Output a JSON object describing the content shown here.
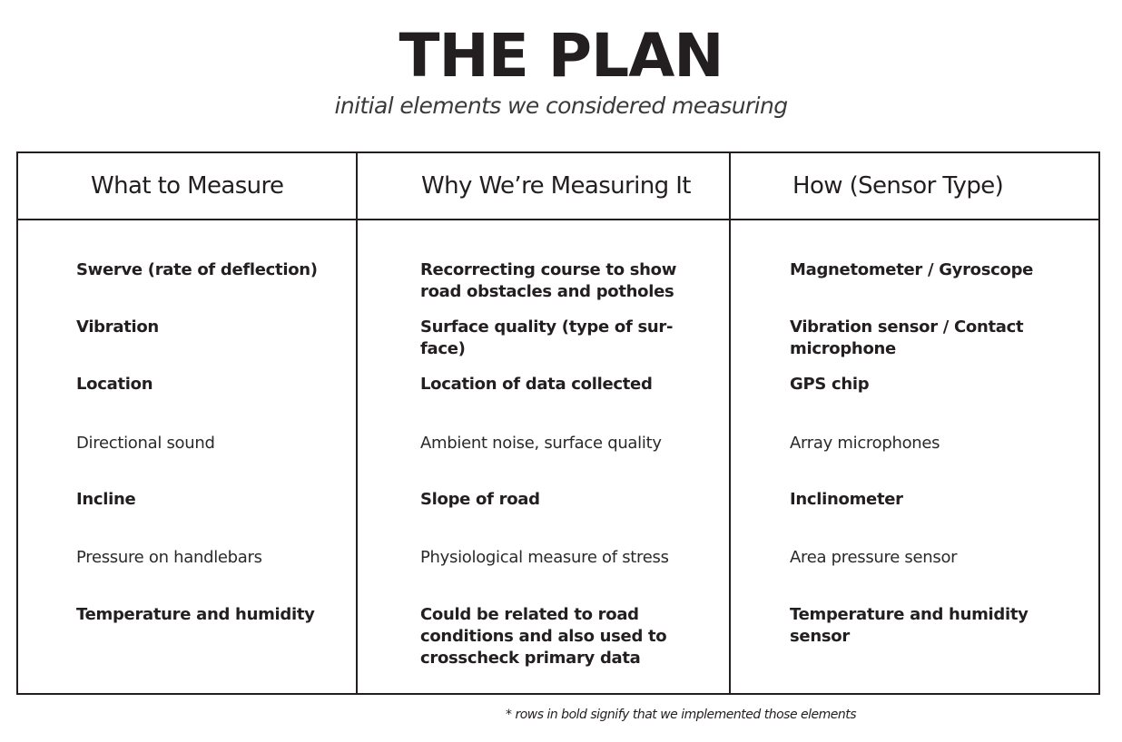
{
  "title": "THE PLAN",
  "subtitle": "initial elements we considered measuring",
  "table": {
    "headers": [
      "What to Measure",
      "Why We’re Measuring It",
      "How (Sensor Type)"
    ],
    "rows": [
      {
        "bold": true,
        "what": "Swerve (rate of deflection)",
        "why_lines": [
          "Recorrecting course to show",
          "road obstacles and potholes"
        ],
        "how_lines": [
          "Magnetometer / Gyroscope"
        ]
      },
      {
        "bold": true,
        "what": "Vibration",
        "why_lines": [
          "Surface quality (type of sur-",
          "face)"
        ],
        "how_lines": [
          "Vibration sensor  / Contact",
          "microphone"
        ]
      },
      {
        "bold": true,
        "what": "Location",
        "why_lines": [
          "Location of data collected"
        ],
        "how_lines": [
          "GPS chip"
        ]
      },
      {
        "bold": false,
        "what": "Directional sound",
        "why_lines": [
          "Ambient noise, surface quality"
        ],
        "how_lines": [
          "Array microphones"
        ]
      },
      {
        "bold": true,
        "what": "Incline",
        "why_lines": [
          "Slope of road"
        ],
        "how_lines": [
          "Inclinometer"
        ]
      },
      {
        "bold": false,
        "what": "Pressure on handlebars",
        "why_lines": [
          "Physiological measure of stress"
        ],
        "how_lines": [
          "Area pressure sensor"
        ]
      },
      {
        "bold": true,
        "what": "Temperature and humidity",
        "why_lines": [
          "Could be related to road",
          "conditions and also used to",
          "crosscheck primary data"
        ],
        "how_lines": [
          "Temperature and humidity",
          "sensor"
        ]
      }
    ]
  },
  "footnote": "* rows in bold signify that we implemented those elements"
}
